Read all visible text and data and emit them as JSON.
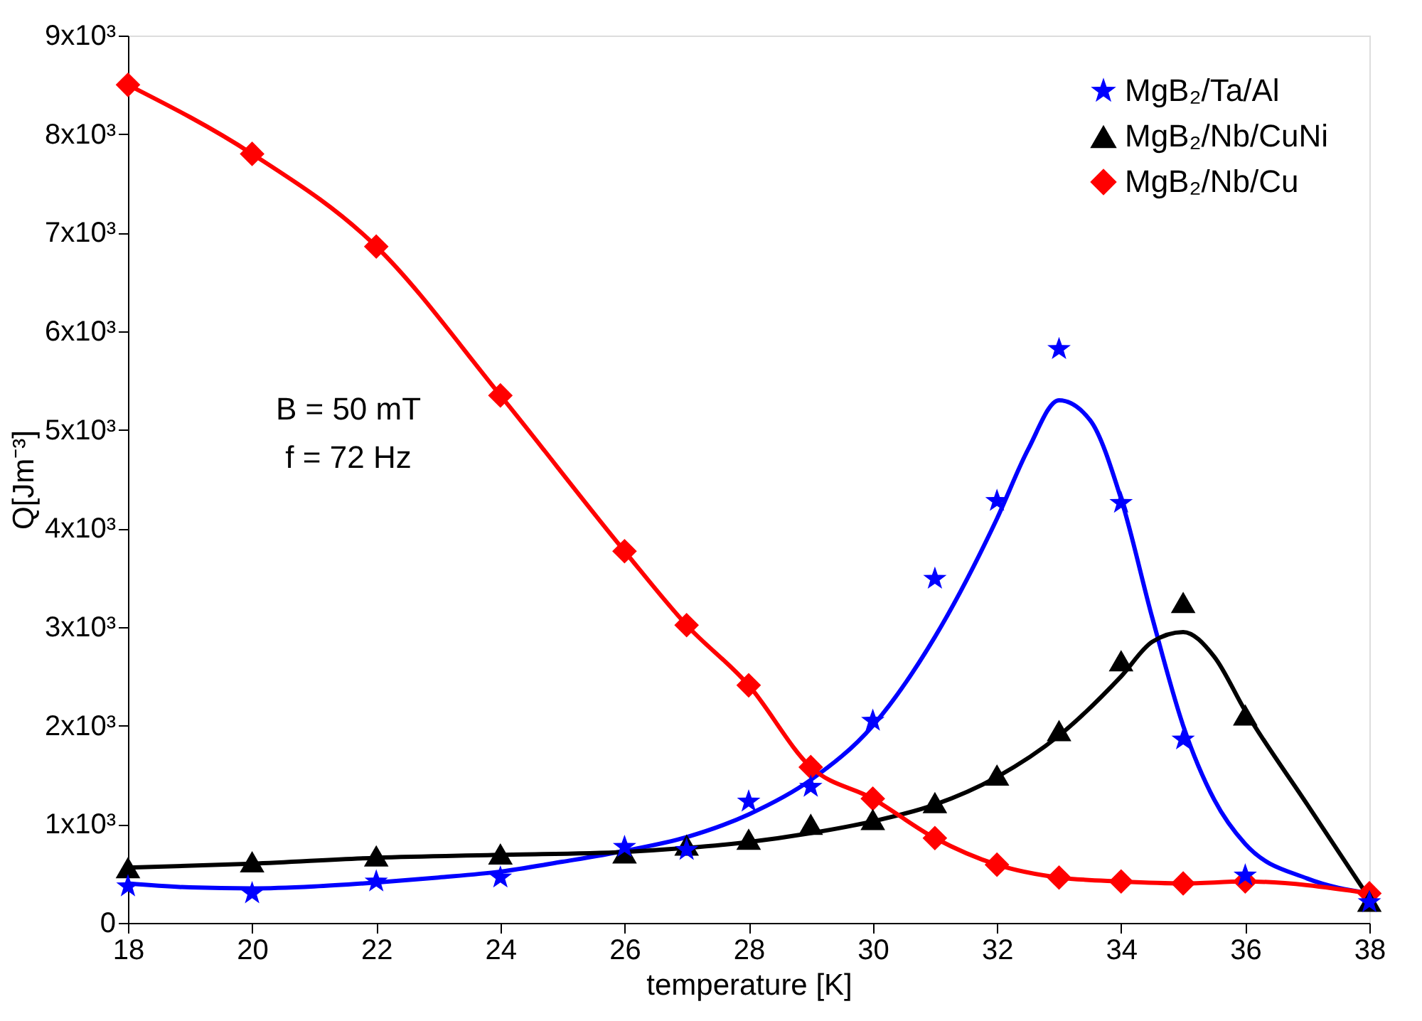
{
  "chart_data": {
    "type": "scatter",
    "xlabel": "temperature [K]",
    "ylabel": "Q[Jm⁻³]",
    "xlim": [
      18,
      38
    ],
    "xticks": [
      18,
      20,
      22,
      24,
      26,
      28,
      30,
      32,
      34,
      36,
      38
    ],
    "ylim": [
      0,
      9000
    ],
    "yticks": [
      0,
      {
        "value": 1000,
        "label": "1x10³"
      },
      {
        "value": 2000,
        "label": "2x10³"
      },
      {
        "value": 3000,
        "label": "3x10³"
      },
      {
        "value": 4000,
        "label": "4x10³"
      },
      {
        "value": 5000,
        "label": "5x10³"
      },
      {
        "value": 6000,
        "label": "6x10³"
      },
      {
        "value": 7000,
        "label": "7x10³"
      },
      {
        "value": 8000,
        "label": "8x10³"
      },
      {
        "value": 9000,
        "label": "9x10³"
      }
    ],
    "grid": false,
    "legend": "top right",
    "annotations": [
      "B = 50 mT",
      "f = 72 Hz"
    ],
    "series": [
      {
        "name": "MgB₂/Ta/Al",
        "color": "#0000ff",
        "marker": "star",
        "x": [
          18,
          20,
          22,
          24,
          26,
          27,
          28,
          29,
          30,
          31,
          32,
          33,
          34,
          35,
          36,
          38
        ],
        "values": [
          370,
          300,
          420,
          460,
          770,
          740,
          1230,
          1380,
          2050,
          3490,
          4280,
          5820,
          4260,
          1860,
          480,
          210
        ]
      },
      {
        "name": "MgB₂/Nb/CuNi",
        "color": "#000000",
        "marker": "triangle",
        "x": [
          18,
          20,
          22,
          24,
          26,
          27,
          28,
          29,
          30,
          31,
          32,
          33,
          34,
          35,
          36,
          38
        ],
        "values": [
          560,
          620,
          680,
          700,
          710,
          790,
          850,
          1000,
          1050,
          1220,
          1500,
          1950,
          2660,
          3250,
          2110,
          220
        ]
      },
      {
        "name": "MgB₂/Nb/Cu",
        "color": "#ff0000",
        "marker": "diamond",
        "x": [
          18,
          20,
          22,
          24,
          26,
          27,
          28,
          29,
          30,
          31,
          32,
          33,
          34,
          35,
          36,
          38
        ],
        "values": [
          8500,
          7800,
          6860,
          5350,
          3770,
          3020,
          2410,
          1580,
          1260,
          860,
          590,
          460,
          420,
          400,
          420,
          300
        ]
      },
      {
        "type": "line",
        "color": "#0000ff",
        "x": [
          18,
          19,
          20,
          21,
          22,
          23,
          24,
          25,
          26,
          27,
          28,
          29,
          30,
          31,
          32,
          32.5,
          33,
          33.5,
          34,
          34.5,
          35,
          35.5,
          36,
          37,
          38
        ],
        "values": [
          400,
          360,
          350,
          370,
          410,
          460,
          520,
          620,
          730,
          870,
          1100,
          1450,
          2000,
          2900,
          4100,
          4800,
          5300,
          5100,
          4300,
          3100,
          2000,
          1250,
          800,
          450,
          300
        ]
      },
      {
        "type": "line",
        "color": "#000000",
        "x": [
          18,
          20,
          22,
          24,
          26,
          27,
          28,
          29,
          30,
          31,
          32,
          33,
          34,
          34.5,
          35,
          35.5,
          36,
          37,
          38
        ],
        "values": [
          560,
          600,
          660,
          690,
          720,
          760,
          820,
          910,
          1030,
          1200,
          1480,
          1900,
          2500,
          2850,
          2950,
          2700,
          2150,
          1200,
          250
        ]
      },
      {
        "type": "line",
        "color": "#ff0000",
        "x": [
          18,
          20,
          22,
          24,
          26,
          27,
          28,
          29,
          30,
          31,
          32,
          33,
          34,
          35,
          36,
          38
        ],
        "values": [
          8500,
          7800,
          6860,
          5350,
          3770,
          3020,
          2410,
          1580,
          1260,
          860,
          590,
          460,
          420,
          400,
          420,
          300
        ]
      }
    ]
  }
}
